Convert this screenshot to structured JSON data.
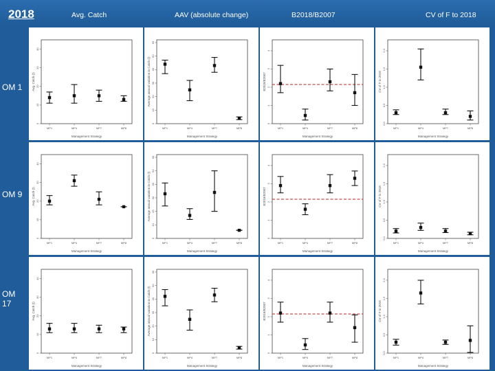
{
  "header": {
    "year": "2018",
    "columns": [
      "Avg. Catch",
      "AAV (absolute change)",
      "B2018/B2007",
      "CV of F to 2018"
    ]
  },
  "rows": [
    "OM 1",
    "OM 9",
    "OM 17"
  ],
  "colors": {
    "background": "#1f5c99",
    "point": "#111111",
    "reference": "#b22222"
  },
  "chart_data": [
    {
      "column": "Avg. Catch",
      "type": "scatter",
      "ylabel": "Avg. Catch (t)",
      "xlabel": "Management Strategy",
      "categories": [
        "MP1",
        "MP4",
        "MP7",
        "MP8"
      ],
      "yticks": [
        "0",
        "10",
        "20",
        "30",
        "40"
      ],
      "ylim": [
        0,
        45
      ],
      "rows": [
        {
          "om": "OM 1",
          "series": [
            {
              "mid": 14,
              "lo": 11,
              "hi": 17
            },
            {
              "mid": 15,
              "lo": 11,
              "hi": 21
            },
            {
              "mid": 15,
              "lo": 12,
              "hi": 18
            },
            {
              "mid": 13,
              "lo": 12,
              "hi": 15
            }
          ]
        },
        {
          "om": "OM 9",
          "series": [
            {
              "mid": 20,
              "lo": 18,
              "hi": 23
            },
            {
              "mid": 31,
              "lo": 28,
              "hi": 34
            },
            {
              "mid": 21,
              "lo": 18,
              "hi": 25
            },
            {
              "mid": 17,
              "lo": 17,
              "hi": 17
            }
          ]
        },
        {
          "om": "OM 17",
          "series": [
            {
              "mid": 13,
              "lo": 11,
              "hi": 16
            },
            {
              "mid": 13,
              "lo": 11,
              "hi": 16
            },
            {
              "mid": 13,
              "lo": 11,
              "hi": 15
            },
            {
              "mid": 13,
              "lo": 11,
              "hi": 14
            }
          ]
        }
      ]
    },
    {
      "column": "AAV (absolute change)",
      "type": "scatter",
      "ylabel": "Average annual variation in Catch (t)",
      "xlabel": "Management Strategy",
      "categories": [
        "MP1",
        "MP4",
        "MP7",
        "MP8"
      ],
      "yticks": [
        "0",
        "10",
        "20",
        "30",
        "40",
        "50",
        "60"
      ],
      "ylim": [
        0,
        62
      ],
      "rows": [
        {
          "om": "OM 1",
          "series": [
            {
              "mid": 44,
              "lo": 37,
              "hi": 47
            },
            {
              "mid": 25,
              "lo": 17,
              "hi": 32
            },
            {
              "mid": 43,
              "lo": 38,
              "hi": 49
            },
            {
              "mid": 4,
              "lo": 3,
              "hi": 5
            }
          ]
        },
        {
          "om": "OM 9",
          "series": [
            {
              "mid": 33,
              "lo": 24,
              "hi": 41
            },
            {
              "mid": 17,
              "lo": 14,
              "hi": 22
            },
            {
              "mid": 34,
              "lo": 20,
              "hi": 50
            },
            {
              "mid": 6,
              "lo": 6,
              "hi": 6
            }
          ]
        },
        {
          "om": "OM 17",
          "series": [
            {
              "mid": 42,
              "lo": 35,
              "hi": 47
            },
            {
              "mid": 25,
              "lo": 17,
              "hi": 32
            },
            {
              "mid": 43,
              "lo": 38,
              "hi": 48
            },
            {
              "mid": 4,
              "lo": 3,
              "hi": 5
            }
          ]
        }
      ]
    },
    {
      "column": "B2018/B2007",
      "type": "scatter",
      "ylabel": "B2018/B2007",
      "xlabel": "Management Strategy",
      "categories": [
        "MP1",
        "MP4",
        "MP7",
        "MP8"
      ],
      "yticks": [
        "0",
        "1",
        "2",
        "3",
        "4"
      ],
      "ylim": [
        0,
        4.6
      ],
      "reference_line": 2.15,
      "rows": [
        {
          "om": "OM 1",
          "series": [
            {
              "mid": 2.2,
              "lo": 1.7,
              "hi": 3.2
            },
            {
              "mid": 0.45,
              "lo": 0.2,
              "hi": 0.8
            },
            {
              "mid": 2.3,
              "lo": 1.8,
              "hi": 3.0
            },
            {
              "mid": 1.7,
              "lo": 1.0,
              "hi": 2.7
            }
          ]
        },
        {
          "om": "OM 9",
          "series": [
            {
              "mid": 2.9,
              "lo": 2.5,
              "hi": 3.4
            },
            {
              "mid": 1.6,
              "lo": 1.3,
              "hi": 1.9
            },
            {
              "mid": 2.9,
              "lo": 2.5,
              "hi": 3.5
            },
            {
              "mid": 3.3,
              "lo": 2.9,
              "hi": 3.7
            }
          ]
        },
        {
          "om": "OM 17",
          "series": [
            {
              "mid": 2.2,
              "lo": 1.7,
              "hi": 2.8
            },
            {
              "mid": 0.45,
              "lo": 0.2,
              "hi": 0.8
            },
            {
              "mid": 2.2,
              "lo": 1.7,
              "hi": 2.8
            },
            {
              "mid": 1.4,
              "lo": 0.6,
              "hi": 2.1
            }
          ]
        }
      ]
    },
    {
      "column": "CV of F to 2018",
      "type": "scatter",
      "ylabel": "CV of F to 2018",
      "xlabel": "Management Strategy",
      "categories": [
        "MP1",
        "MP4",
        "MP7",
        "MP8"
      ],
      "yticks": [
        "0.0",
        "0.5",
        "1.0",
        "1.5",
        "2.0"
      ],
      "ylim": [
        0,
        2.3
      ],
      "rows": [
        {
          "om": "OM 1",
          "series": [
            {
              "mid": 0.3,
              "lo": 0.25,
              "hi": 0.38
            },
            {
              "mid": 1.55,
              "lo": 1.2,
              "hi": 2.05
            },
            {
              "mid": 0.3,
              "lo": 0.25,
              "hi": 0.4
            },
            {
              "mid": 0.2,
              "lo": 0.1,
              "hi": 0.35
            }
          ]
        },
        {
          "om": "OM 9",
          "series": [
            {
              "mid": 0.2,
              "lo": 0.15,
              "hi": 0.27
            },
            {
              "mid": 0.3,
              "lo": 0.22,
              "hi": 0.42
            },
            {
              "mid": 0.2,
              "lo": 0.16,
              "hi": 0.27
            },
            {
              "mid": 0.13,
              "lo": 0.1,
              "hi": 0.17
            }
          ]
        },
        {
          "om": "OM 17",
          "series": [
            {
              "mid": 0.3,
              "lo": 0.22,
              "hi": 0.38
            },
            {
              "mid": 1.65,
              "lo": 1.35,
              "hi": 2.0
            },
            {
              "mid": 0.3,
              "lo": 0.24,
              "hi": 0.36
            },
            {
              "mid": 0.35,
              "lo": 0.02,
              "hi": 0.75
            }
          ]
        }
      ]
    }
  ]
}
